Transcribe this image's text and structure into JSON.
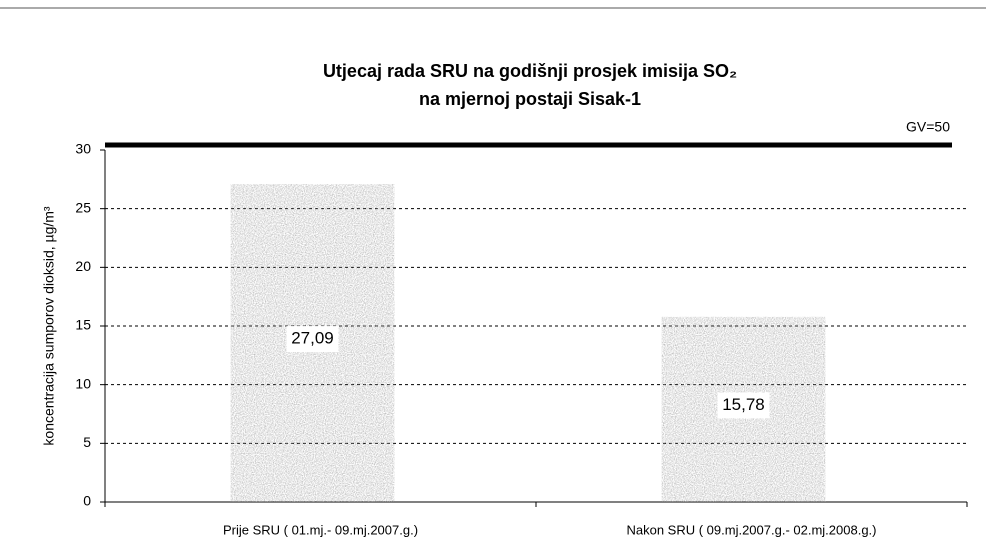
{
  "chart_data": {
    "type": "bar",
    "title": [
      "Utjecaj rada SRU na  godišnji prosjek imisija SO₂",
      "na mjernoj postaji Sisak-1"
    ],
    "y_label": "koncentracija sumporov dioksid, µg/m³",
    "annotation": "GV=50",
    "categories": [
      "Prije SRU ( 01.mj.- 09.mj.2007.g.)",
      "Nakon SRU ( 09.mj.2007.g.- 02.mj.2008.g.)"
    ],
    "values": [
      27.09,
      15.78
    ],
    "value_labels": [
      "27,09",
      "15,78"
    ],
    "color": "#a6a6a6",
    "ylim": [
      0,
      30
    ],
    "yticks": [
      0,
      5,
      10,
      15,
      20,
      25,
      30
    ],
    "grid": true
  }
}
